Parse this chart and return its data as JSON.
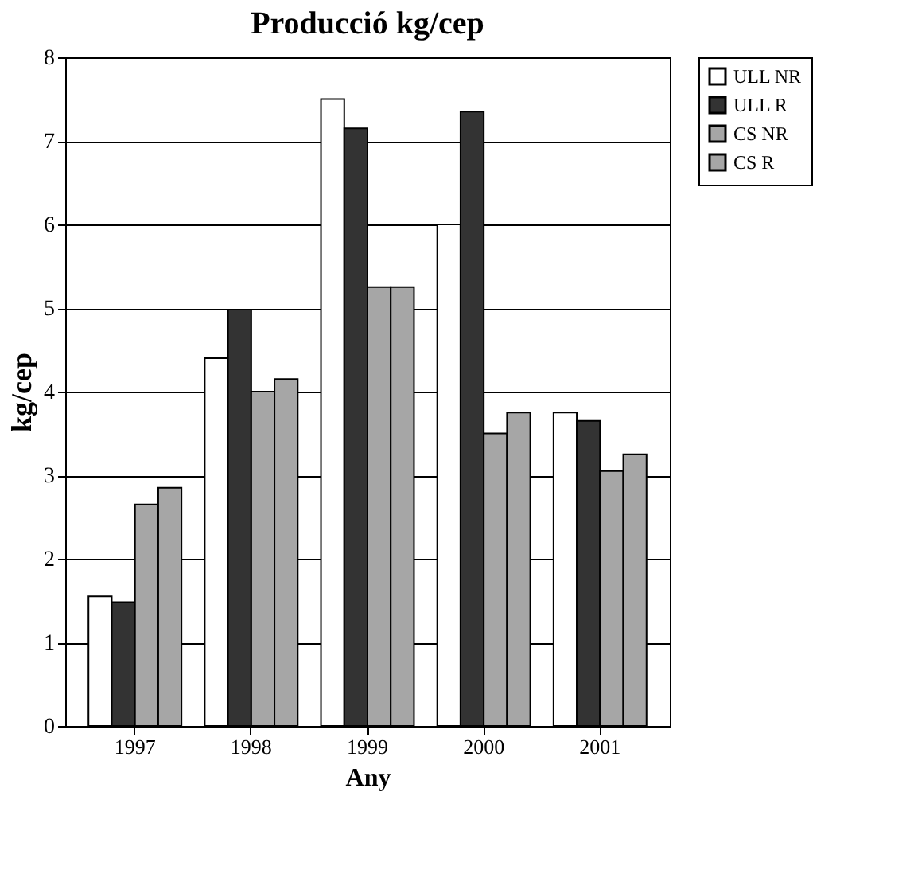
{
  "chart_data": {
    "type": "bar",
    "title": "Producció kg/cep",
    "xlabel": "Any",
    "ylabel": "kg/cep",
    "categories": [
      "1997",
      "1998",
      "1999",
      "2000",
      "2001"
    ],
    "series": [
      {
        "name": "ULL NR",
        "color": "#ffffff",
        "values": [
          1.55,
          4.4,
          7.5,
          6.0,
          3.75
        ]
      },
      {
        "name": "ULL R",
        "color": "#333333",
        "values": [
          1.48,
          4.98,
          7.15,
          7.35,
          3.65
        ]
      },
      {
        "name": "CS NR",
        "color": "#a6a6a6",
        "values": [
          2.65,
          4.0,
          5.25,
          3.5,
          3.05
        ]
      },
      {
        "name": "CS R",
        "color": "#a6a6a6",
        "values": [
          2.85,
          4.15,
          5.25,
          3.75,
          3.25
        ]
      }
    ],
    "ylim": [
      0,
      8
    ],
    "yticks": [
      0,
      1,
      2,
      3,
      4,
      5,
      6,
      7,
      8
    ],
    "grid": "y",
    "legend": "right"
  }
}
